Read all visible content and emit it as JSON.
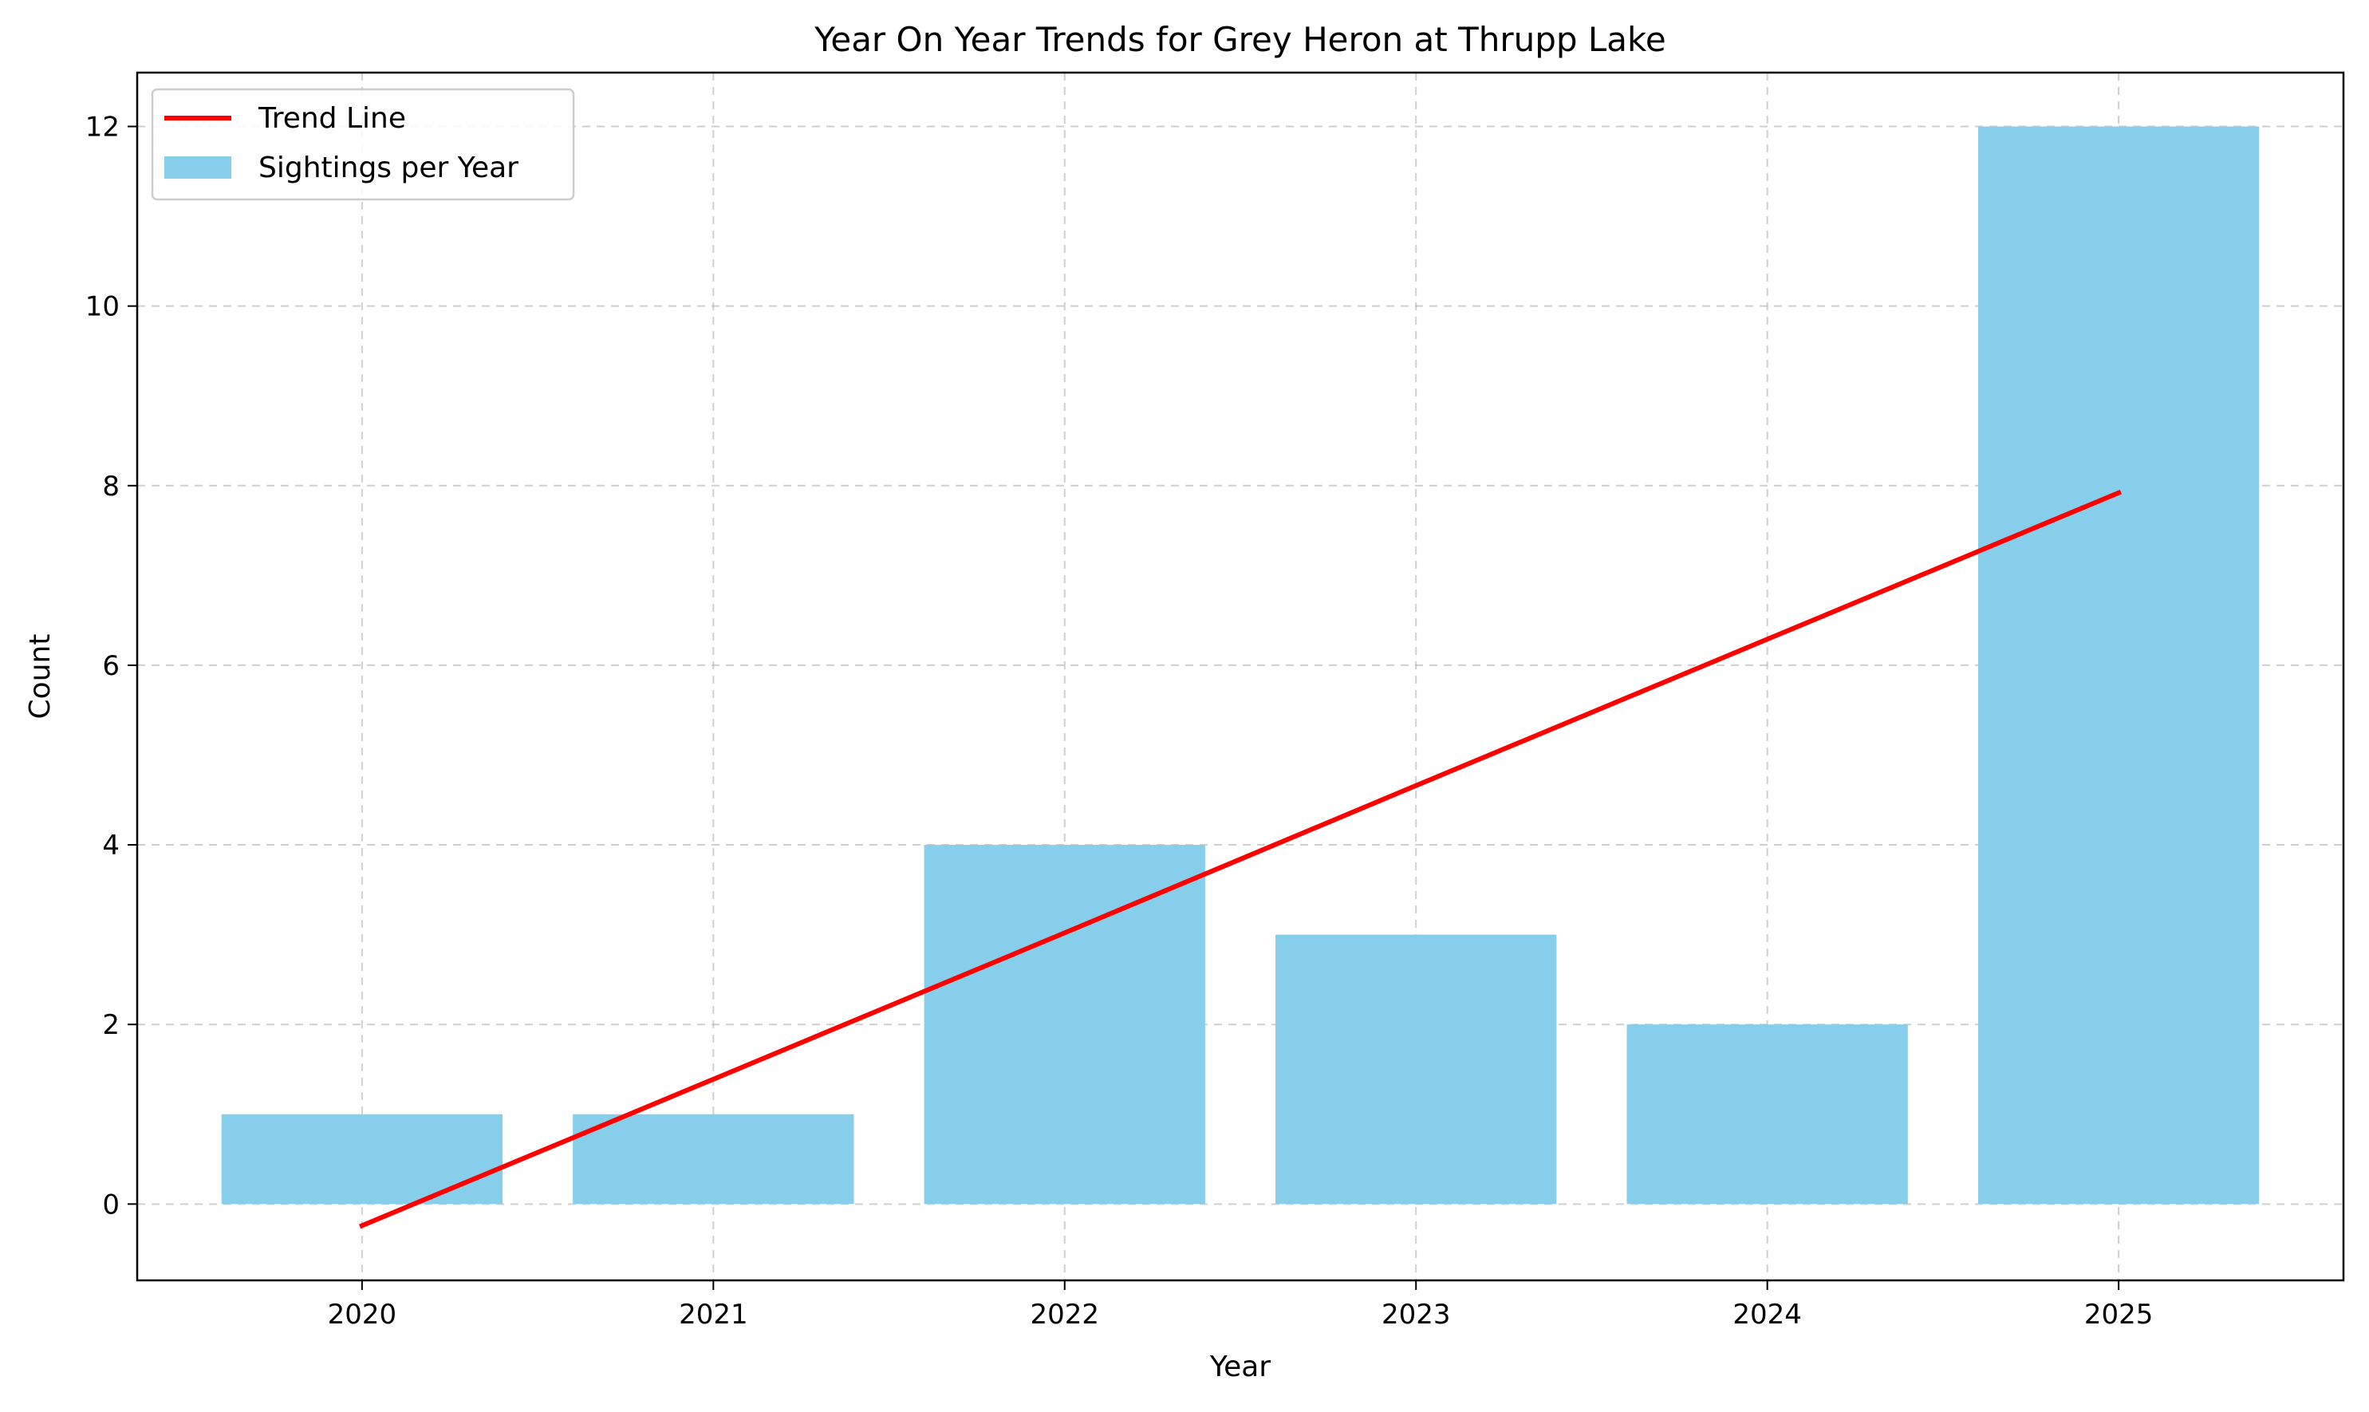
{
  "chart_data": {
    "type": "bar",
    "title": "Year On Year Trends for Grey Heron at Thrupp Lake",
    "xlabel": "Year",
    "ylabel": "Count",
    "categories": [
      "2020",
      "2021",
      "2022",
      "2023",
      "2024",
      "2025"
    ],
    "series": [
      {
        "name": "Sightings per Year",
        "type": "bar",
        "values": [
          1,
          1,
          4,
          3,
          2,
          12
        ],
        "color": "#87CEEB"
      },
      {
        "name": "Trend Line",
        "type": "line",
        "values": [
          -0.24,
          1.39,
          3.02,
          4.66,
          6.29,
          7.92
        ],
        "color": "#FF0000"
      }
    ],
    "ylim": [
      -0.85,
      12.6
    ],
    "yticks": [
      0,
      2,
      4,
      6,
      8,
      10,
      12
    ],
    "grid": true,
    "legend_position": "top-left"
  }
}
